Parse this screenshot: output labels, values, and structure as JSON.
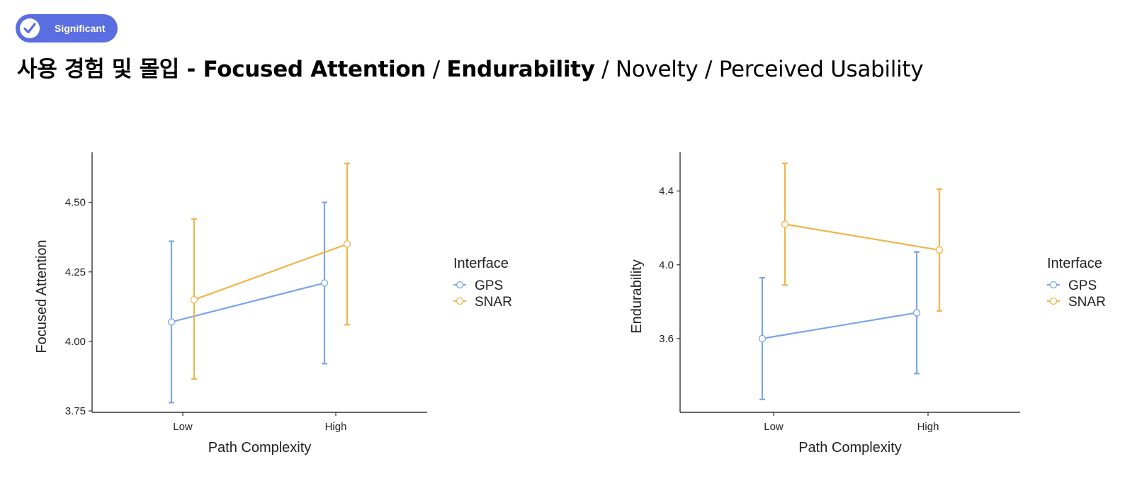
{
  "badge": {
    "label": "Significant",
    "icon": "check-icon",
    "color": "#5b6ee1"
  },
  "title": {
    "prefix": "사용 경험 및 몰입 - ",
    "bold1": "Focused Attention",
    "sep1": " / ",
    "bold2": "Endurability",
    "rest": " / Novelty / Perceived Usability"
  },
  "colors": {
    "GPS": "#7aa6e8",
    "SNAR": "#f0b54a"
  },
  "chart_data": [
    {
      "type": "line",
      "xlabel": "Path Complexity",
      "ylabel": "Focused Attention",
      "categories": [
        "Low",
        "High"
      ],
      "yticks": [
        3.75,
        4.0,
        4.25,
        4.5
      ],
      "ytick_labels": [
        "3.75",
        "4.00",
        "4.25",
        "4.50"
      ],
      "ylim": [
        3.745,
        4.68
      ],
      "legend": {
        "title": "Interface",
        "placement": "right"
      },
      "series": [
        {
          "name": "GPS",
          "values": [
            4.07,
            4.21
          ],
          "ci_low": [
            3.78,
            3.92
          ],
          "ci_high": [
            4.36,
            4.5
          ]
        },
        {
          "name": "SNAR",
          "values": [
            4.15,
            4.35
          ],
          "ci_low": [
            3.865,
            4.06
          ],
          "ci_high": [
            4.44,
            4.64
          ]
        }
      ]
    },
    {
      "type": "line",
      "xlabel": "Path Complexity",
      "ylabel": "Endurability",
      "categories": [
        "Low",
        "High"
      ],
      "yticks": [
        3.6,
        4.0,
        4.4
      ],
      "ytick_labels": [
        "3.6",
        "4.0",
        "4.4"
      ],
      "ylim": [
        3.2,
        4.61
      ],
      "legend": {
        "title": "Interface",
        "placement": "right"
      },
      "series": [
        {
          "name": "GPS",
          "values": [
            3.6,
            3.74
          ],
          "ci_low": [
            3.27,
            3.41
          ],
          "ci_high": [
            3.93,
            4.07
          ]
        },
        {
          "name": "SNAR",
          "values": [
            4.22,
            4.08
          ],
          "ci_low": [
            3.89,
            3.75
          ],
          "ci_high": [
            4.55,
            4.41
          ]
        }
      ]
    }
  ]
}
